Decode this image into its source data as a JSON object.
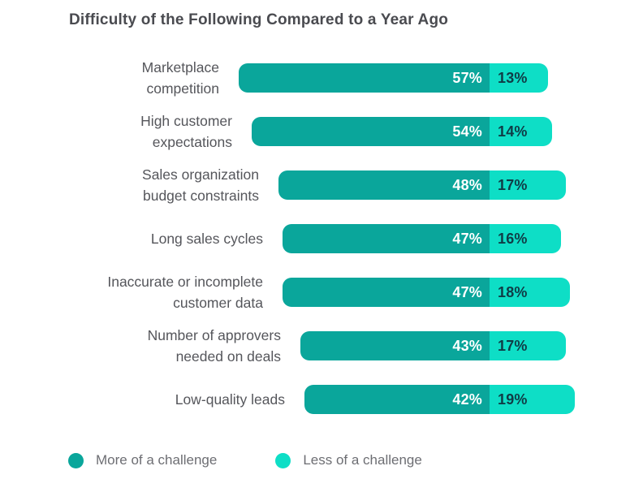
{
  "title": "Difficulty of the Following Compared to a Year Ago",
  "chart_data": {
    "type": "bar",
    "orientation": "horizontal-stacked",
    "title": "Difficulty of the Following Compared to a Year Ago",
    "categories": [
      "Marketplace competition",
      "High customer expectations",
      "Sales organization budget constraints",
      "Long sales cycles",
      "Inaccurate or incomplete customer data",
      "Number of approvers needed on deals",
      "Low-quality leads"
    ],
    "category_lines": [
      [
        "Marketplace",
        "competition"
      ],
      [
        "High customer",
        "expectations"
      ],
      [
        "Sales organization",
        "budget constraints"
      ],
      [
        "Long sales cycles"
      ],
      [
        "Inaccurate or incomplete",
        "customer data"
      ],
      [
        "Number of approvers",
        "needed on deals"
      ],
      [
        "Low-quality leads"
      ]
    ],
    "series": [
      {
        "name": "More of a challenge",
        "values": [
          57,
          54,
          48,
          47,
          47,
          43,
          42
        ],
        "color": "#0aa69b",
        "value_text_color": "#ffffff"
      },
      {
        "name": "Less of a challenge",
        "values": [
          13,
          14,
          17,
          16,
          18,
          17,
          19
        ],
        "color": "#0edec6",
        "value_text_color": "#103c46"
      }
    ],
    "value_suffix": "%",
    "legend_position": "bottom",
    "grid": false,
    "axes_shown": false
  },
  "legend": {
    "items": [
      {
        "label": "More of a challenge",
        "color": "#0aa69b"
      },
      {
        "label": "Less of a challenge",
        "color": "#0edec6"
      }
    ]
  },
  "colors": {
    "background": "#ffffff",
    "title_text": "#4a4b50",
    "category_text": "#55565b",
    "legend_text": "#6d6e73"
  }
}
